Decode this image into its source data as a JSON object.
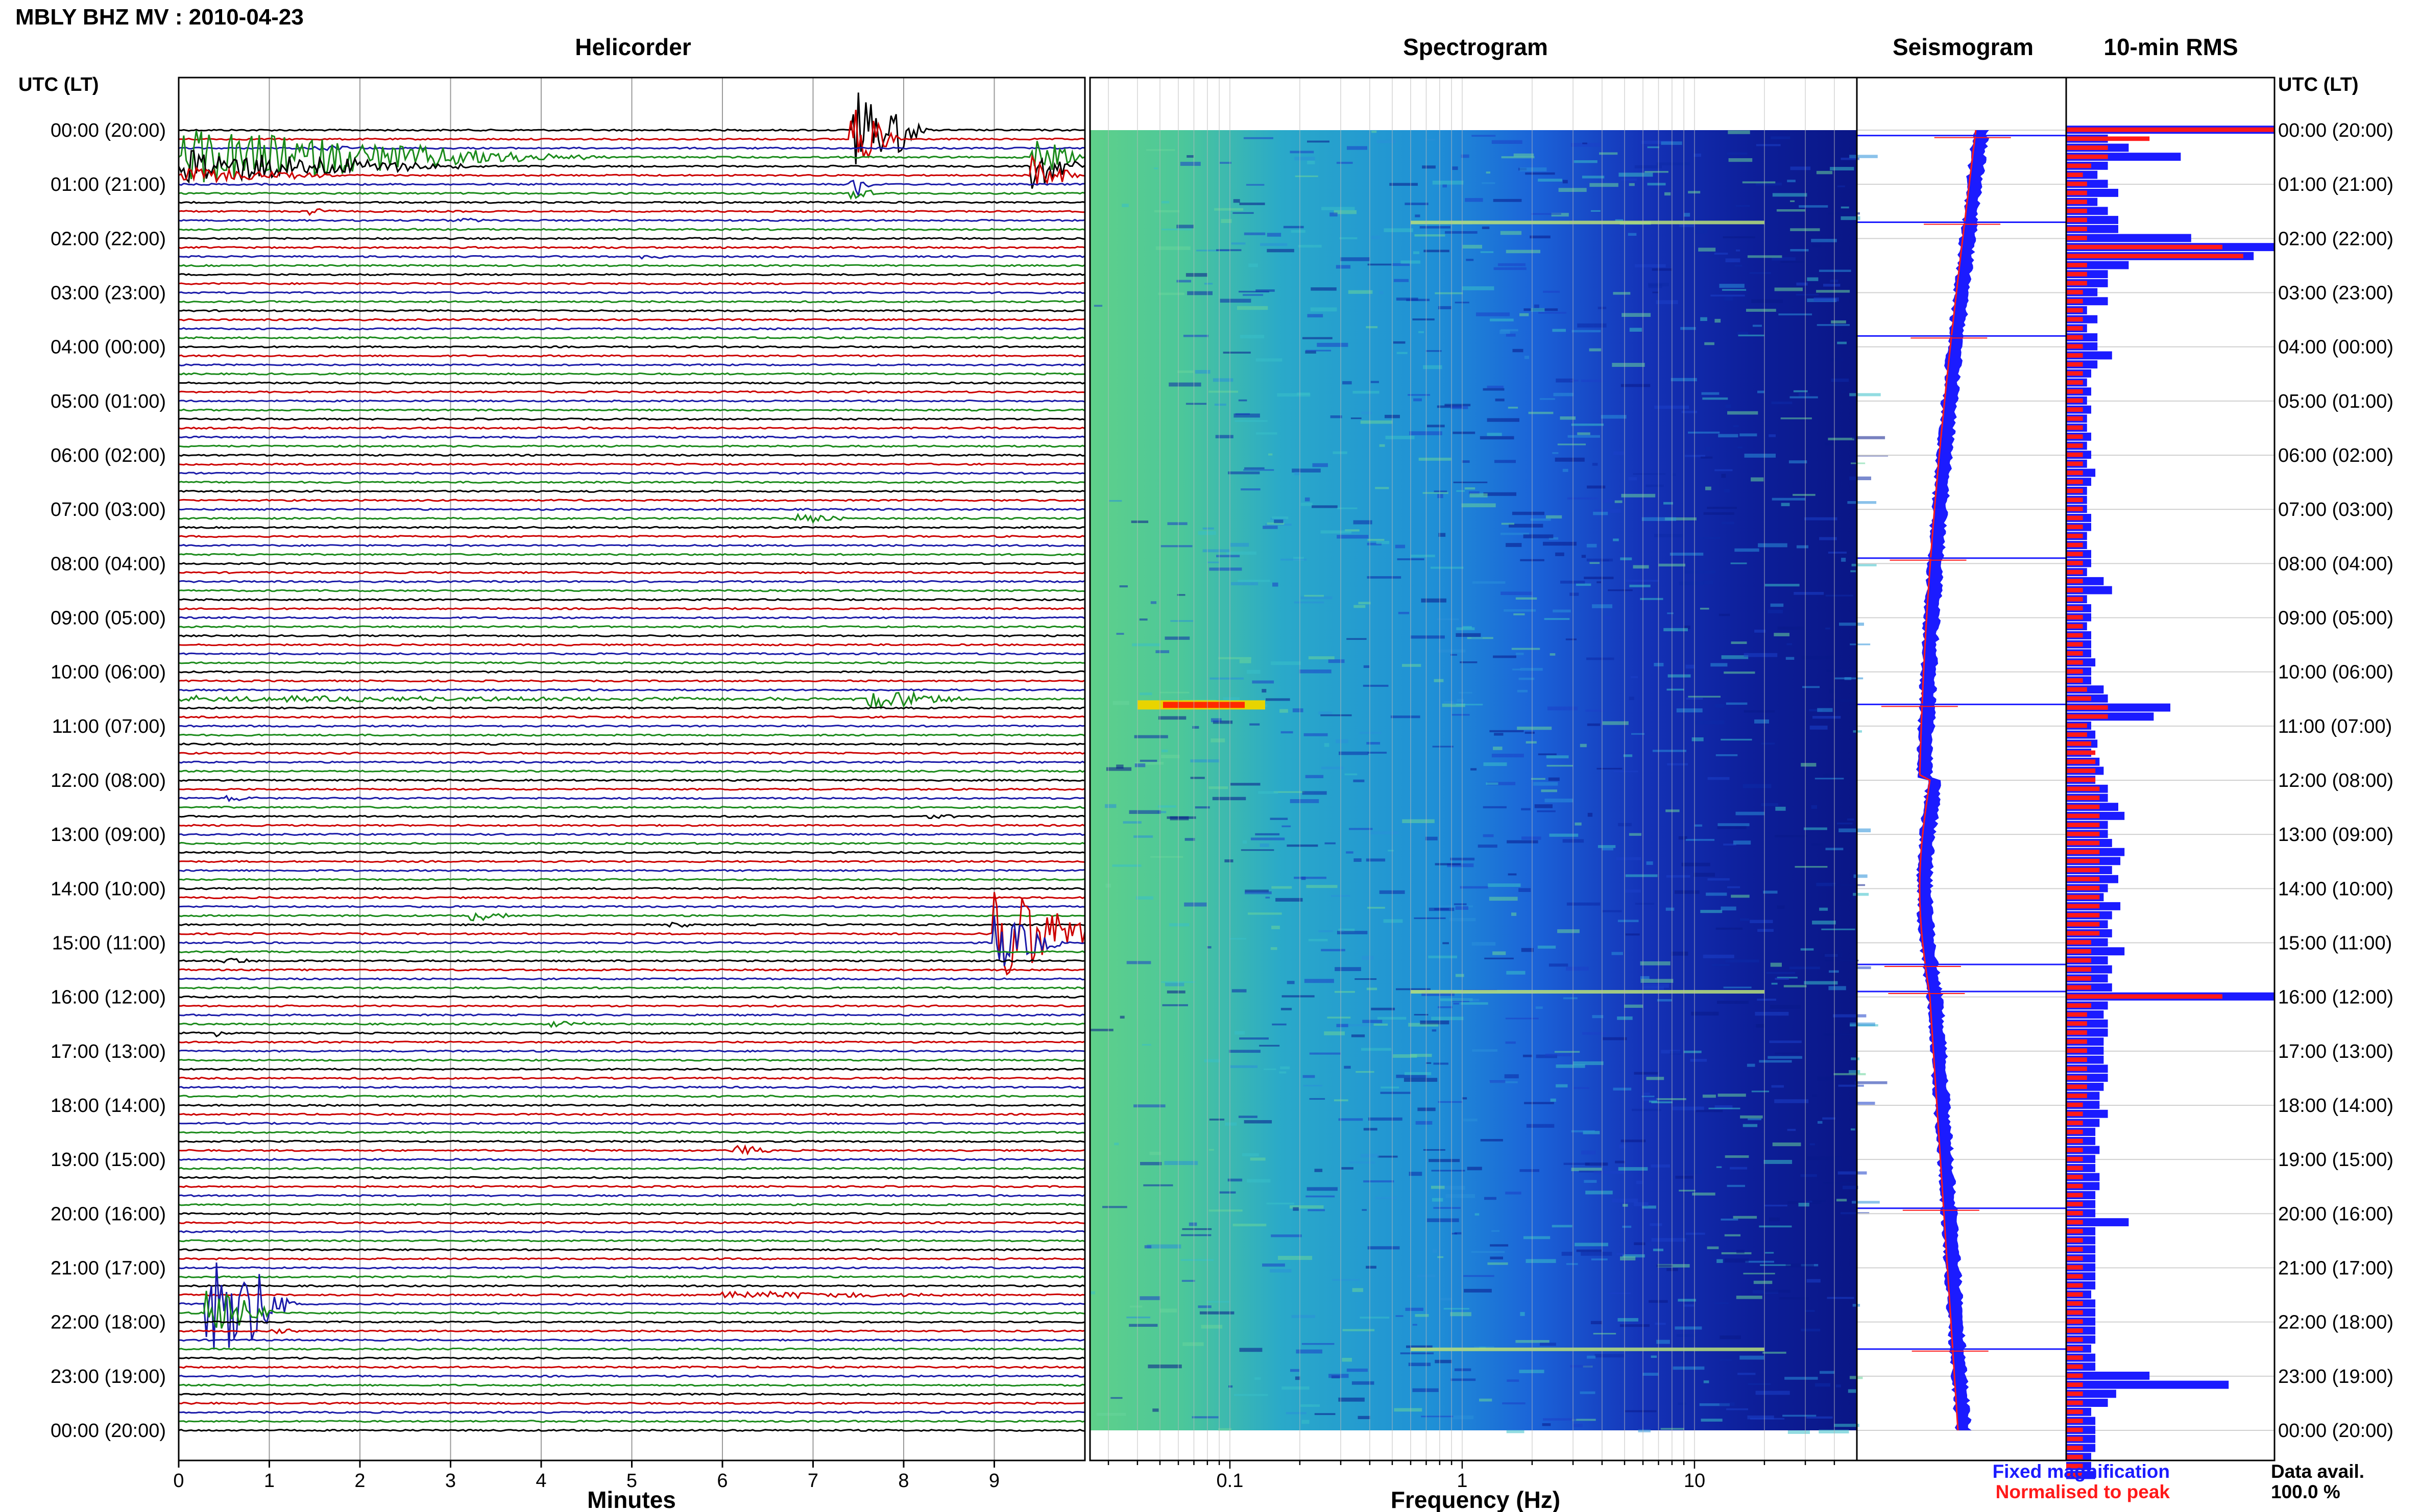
{
  "title": "MBLY BHZ MV : 2010-04-23",
  "time_axis_label": "UTC (LT)",
  "panels": {
    "helicorder": "Helicorder",
    "spectrogram": "Spectrogram",
    "seismogram": "Seismogram",
    "rms": "10-min RMS"
  },
  "legend": {
    "fixed": "Fixed magnification",
    "normalised": "Normalised to peak",
    "fixed_color": "#1b1bff",
    "normalised_color": "#ff1a1a"
  },
  "data_avail": {
    "label": "Data avail.",
    "value": "100.0 %"
  },
  "colors": {
    "trace_cycle": [
      "#000000",
      "#cc0000",
      "#1a1aa8",
      "#1a8a1a"
    ],
    "rms_fixed": "#1b1bff",
    "rms_norm": "#ff1a1a",
    "spectro_low": "#00106e",
    "spectro_high": "#ff2a00"
  },
  "chart_data": [
    {
      "type": "line",
      "panel": "helicorder",
      "xlabel": "Minutes",
      "x_ticks": [
        "0",
        "1",
        "2",
        "3",
        "4",
        "5",
        "6",
        "7",
        "8",
        "9"
      ],
      "xlim": [
        0,
        10
      ],
      "y_labels": [
        "00:00 (20:00)",
        "01:00 (21:00)",
        "02:00 (22:00)",
        "03:00 (23:00)",
        "04:00 (00:00)",
        "05:00 (01:00)",
        "06:00 (02:00)",
        "07:00 (03:00)",
        "08:00 (04:00)",
        "09:00 (05:00)",
        "10:00 (06:00)",
        "11:00 (07:00)",
        "12:00 (08:00)",
        "13:00 (09:00)",
        "14:00 (10:00)",
        "15:00 (11:00)",
        "16:00 (12:00)",
        "17:00 (13:00)",
        "18:00 (14:00)",
        "19:00 (15:00)",
        "20:00 (16:00)",
        "21:00 (17:00)",
        "22:00 (18:00)",
        "23:00 (19:00)",
        "00:00 (20:00)"
      ],
      "rows_per_hour": 6,
      "row_minutes": 10,
      "events": [
        {
          "row": 0,
          "minute": 7.4,
          "amp": 4.2,
          "dur": 0.9
        },
        {
          "row": 0,
          "minute": 7.6,
          "amp": 1.8,
          "dur": 0.6
        },
        {
          "row": 1,
          "minute": 7.4,
          "amp": 3.2,
          "dur": 0.6
        },
        {
          "row": 3,
          "minute": 0.0,
          "amp": 2.6,
          "dur": 4.5
        },
        {
          "row": 4,
          "minute": 0.0,
          "amp": 1.6,
          "dur": 3.5
        },
        {
          "row": 5,
          "minute": 0.0,
          "amp": 0.7,
          "dur": 2.0
        },
        {
          "row": 2,
          "minute": 1.5,
          "amp": 0.3,
          "dur": 0.6
        },
        {
          "row": 3,
          "minute": 4.3,
          "amp": 0.25,
          "dur": 0.5
        },
        {
          "row": 3,
          "minute": 9.4,
          "amp": 2.2,
          "dur": 0.6
        },
        {
          "row": 4,
          "minute": 9.4,
          "amp": 2.4,
          "dur": 0.6
        },
        {
          "row": 5,
          "minute": 9.4,
          "amp": 2.0,
          "dur": 0.6
        },
        {
          "row": 6,
          "minute": 7.4,
          "amp": 1.6,
          "dur": 0.3
        },
        {
          "row": 7,
          "minute": 7.4,
          "amp": 1.2,
          "dur": 0.3
        },
        {
          "row": 9,
          "minute": 1.4,
          "amp": 0.35,
          "dur": 0.4
        },
        {
          "row": 10,
          "minute": 2.9,
          "amp": 0.3,
          "dur": 0.6
        },
        {
          "row": 14,
          "minute": 5.1,
          "amp": 0.2,
          "dur": 0.4
        },
        {
          "row": 43,
          "minute": 6.8,
          "amp": 0.6,
          "dur": 0.6
        },
        {
          "row": 63,
          "minute": 7.6,
          "amp": 1.0,
          "dur": 1.2
        },
        {
          "row": 63,
          "minute": 0.0,
          "amp": 0.25,
          "dur": 10.0
        },
        {
          "row": 74,
          "minute": 0.5,
          "amp": 0.3,
          "dur": 0.5
        },
        {
          "row": 76,
          "minute": 8.2,
          "amp": 0.2,
          "dur": 0.6
        },
        {
          "row": 87,
          "minute": 3.2,
          "amp": 0.5,
          "dur": 0.6
        },
        {
          "row": 88,
          "minute": 5.4,
          "amp": 0.3,
          "dur": 0.4
        },
        {
          "row": 89,
          "minute": 9.0,
          "amp": 5.0,
          "dur": 1.2
        },
        {
          "row": 90,
          "minute": 9.0,
          "amp": 2.5,
          "dur": 0.8
        },
        {
          "row": 92,
          "minute": 0.5,
          "amp": 0.35,
          "dur": 0.4
        },
        {
          "row": 99,
          "minute": 4.1,
          "amp": 0.3,
          "dur": 0.7
        },
        {
          "row": 100,
          "minute": 0.4,
          "amp": 0.3,
          "dur": 0.3
        },
        {
          "row": 113,
          "minute": 6.1,
          "amp": 0.6,
          "dur": 0.5
        },
        {
          "row": 130,
          "minute": 0.3,
          "amp": 7.0,
          "dur": 1.0
        },
        {
          "row": 131,
          "minute": 0.3,
          "amp": 2.5,
          "dur": 0.8
        },
        {
          "row": 129,
          "minute": 6.0,
          "amp": 0.35,
          "dur": 3.0
        },
        {
          "row": 133,
          "minute": 1.0,
          "amp": 0.2,
          "dur": 0.5
        }
      ]
    },
    {
      "type": "heatmap",
      "panel": "spectrogram",
      "xlabel": "Frequency (Hz)",
      "x_ticks": [
        0.1,
        1,
        10
      ],
      "x_tick_labels": [
        "0.1",
        "1",
        "10"
      ],
      "xlim": [
        0.025,
        50
      ],
      "x_scale": "log",
      "hot_spots": [
        {
          "hour": 10.6,
          "freq": 0.06,
          "level": 1.0
        },
        {
          "hour": 1.7,
          "freq": 2.0,
          "level": 0.6
        },
        {
          "hour": 15.9,
          "freq": 2.0,
          "level": 0.55
        },
        {
          "hour": 22.5,
          "freq": 2.0,
          "level": 0.5
        }
      ]
    },
    {
      "type": "line",
      "panel": "seismogram",
      "series": [
        {
          "name": "Fixed magnification",
          "color": "#1b1bff"
        },
        {
          "name": "Normalised to peak",
          "color": "#ff1a1a"
        }
      ],
      "spikes_hours": [
        0.1,
        1.7,
        3.8,
        7.9,
        10.6,
        15.4,
        15.9,
        19.9,
        22.5
      ]
    },
    {
      "type": "bar",
      "panel": "rms",
      "orientation": "horizontal",
      "bins_per_hour": 6,
      "series": [
        {
          "name": "Fixed magnification",
          "color": "#1b1bff"
        },
        {
          "name": "Normalised to peak",
          "color": "#ff1a1a"
        }
      ],
      "fixed_values": [
        1.0,
        0.2,
        0.3,
        0.55,
        0.2,
        0.15,
        0.2,
        0.25,
        0.15,
        0.2,
        0.25,
        0.25,
        0.6,
        1.0,
        0.9,
        0.3,
        0.2,
        0.2,
        0.15,
        0.2,
        0.1,
        0.15,
        0.1,
        0.15,
        0.15,
        0.22,
        0.15,
        0.12,
        0.1,
        0.12,
        0.1,
        0.12,
        0.1,
        0.1,
        0.12,
        0.1,
        0.12,
        0.1,
        0.14,
        0.12,
        0.1,
        0.1,
        0.1,
        0.12,
        0.12,
        0.1,
        0.1,
        0.12,
        0.12,
        0.1,
        0.18,
        0.22,
        0.1,
        0.12,
        0.12,
        0.1,
        0.12,
        0.12,
        0.12,
        0.14,
        0.12,
        0.12,
        0.18,
        0.2,
        0.5,
        0.42,
        0.12,
        0.14,
        0.15,
        0.12,
        0.16,
        0.18,
        0.14,
        0.2,
        0.2,
        0.25,
        0.28,
        0.2,
        0.2,
        0.22,
        0.28,
        0.26,
        0.22,
        0.25,
        0.2,
        0.18,
        0.26,
        0.22,
        0.2,
        0.22,
        0.2,
        0.28,
        0.2,
        0.22,
        0.2,
        0.22,
        1.0,
        0.2,
        0.18,
        0.2,
        0.2,
        0.18,
        0.18,
        0.18,
        0.2,
        0.2,
        0.18,
        0.16,
        0.16,
        0.2,
        0.16,
        0.14,
        0.14,
        0.16,
        0.14,
        0.14,
        0.16,
        0.16,
        0.14,
        0.14,
        0.14,
        0.3,
        0.14,
        0.14,
        0.14,
        0.14,
        0.14,
        0.14,
        0.14,
        0.12,
        0.14,
        0.14,
        0.14,
        0.14,
        0.14,
        0.12,
        0.14,
        0.14,
        0.4,
        0.78,
        0.24,
        0.2,
        0.12,
        0.14,
        0.14,
        0.14,
        0.14,
        0.12,
        0.12,
        0.14
      ],
      "norm_values": [
        1.0,
        0.4,
        0.2,
        0.2,
        0.12,
        0.08,
        0.1,
        0.1,
        0.1,
        0.1,
        0.1,
        0.1,
        0.1,
        0.75,
        0.85,
        0.1,
        0.1,
        0.1,
        0.08,
        0.08,
        0.08,
        0.08,
        0.08,
        0.08,
        0.08,
        0.08,
        0.08,
        0.08,
        0.08,
        0.08,
        0.08,
        0.08,
        0.08,
        0.08,
        0.08,
        0.08,
        0.08,
        0.08,
        0.08,
        0.08,
        0.08,
        0.08,
        0.08,
        0.08,
        0.08,
        0.08,
        0.08,
        0.08,
        0.08,
        0.08,
        0.08,
        0.08,
        0.08,
        0.08,
        0.08,
        0.08,
        0.08,
        0.08,
        0.08,
        0.08,
        0.08,
        0.08,
        0.1,
        0.12,
        0.2,
        0.2,
        0.1,
        0.1,
        0.12,
        0.14,
        0.14,
        0.14,
        0.14,
        0.16,
        0.16,
        0.16,
        0.16,
        0.16,
        0.16,
        0.16,
        0.16,
        0.16,
        0.16,
        0.16,
        0.16,
        0.16,
        0.16,
        0.16,
        0.16,
        0.16,
        0.12,
        0.12,
        0.12,
        0.12,
        0.12,
        0.12,
        0.75,
        0.12,
        0.1,
        0.1,
        0.1,
        0.1,
        0.1,
        0.1,
        0.1,
        0.1,
        0.1,
        0.1,
        0.08,
        0.08,
        0.08,
        0.08,
        0.08,
        0.08,
        0.08,
        0.08,
        0.08,
        0.08,
        0.08,
        0.08,
        0.08,
        0.08,
        0.08,
        0.08,
        0.08,
        0.08,
        0.08,
        0.08,
        0.08,
        0.08,
        0.08,
        0.08,
        0.08,
        0.08,
        0.08,
        0.08,
        0.08,
        0.08,
        0.08,
        0.08,
        0.08,
        0.08,
        0.08,
        0.08,
        0.08,
        0.08,
        0.08,
        0.08,
        0.08,
        0.08
      ]
    }
  ]
}
